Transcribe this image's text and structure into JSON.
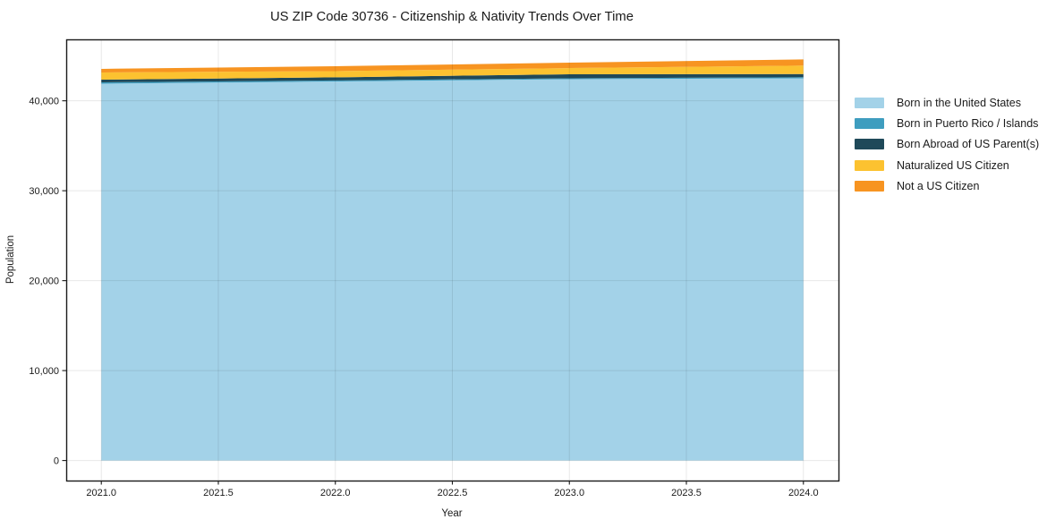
{
  "page": {
    "background": "#ffffff"
  },
  "chart_data": {
    "type": "area",
    "stacked": true,
    "title": "US ZIP Code 30736 - Citizenship & Nativity Trends Over Time",
    "xlabel": "Year",
    "ylabel": "Population",
    "x": [
      2021,
      2022,
      2023,
      2024
    ],
    "series": [
      {
        "name": "Born in the United States",
        "color": "#a3d2e8",
        "values": [
          41900,
          42150,
          42400,
          42500
        ]
      },
      {
        "name": "Born in Puerto Rico / Islands",
        "color": "#3e9dbf",
        "values": [
          150,
          110,
          100,
          120
        ]
      },
      {
        "name": "Born Abroad of US Parent(s)",
        "color": "#1f4959",
        "values": [
          300,
          350,
          450,
          350
        ]
      },
      {
        "name": "Naturalized US Citizen",
        "color": "#fcc230",
        "values": [
          800,
          690,
          690,
          950
        ]
      },
      {
        "name": "Not a US Citizen",
        "color": "#f79421",
        "values": [
          400,
          550,
          600,
          680
        ]
      }
    ],
    "xticks": [
      2021.0,
      2021.5,
      2022.0,
      2022.5,
      2023.0,
      2023.5,
      2024.0
    ],
    "xtick_labels": [
      "2021.0",
      "2021.5",
      "2022.0",
      "2022.5",
      "2023.0",
      "2023.5",
      "2024.0"
    ],
    "yticks": [
      0,
      10000,
      20000,
      30000,
      40000
    ],
    "ytick_labels": [
      "0",
      "10,000",
      "20,000",
      "30,000",
      "40,000"
    ],
    "xlim": [
      2020.85,
      2024.15
    ],
    "ylim": [
      -2230,
      46830
    ],
    "grid": true,
    "legend_position": "right-outside"
  },
  "style": {
    "spine_color": "#1a1a1a",
    "grid_color": "rgba(0,0,0,0.09)",
    "tick_color": "#1a1a1a"
  }
}
